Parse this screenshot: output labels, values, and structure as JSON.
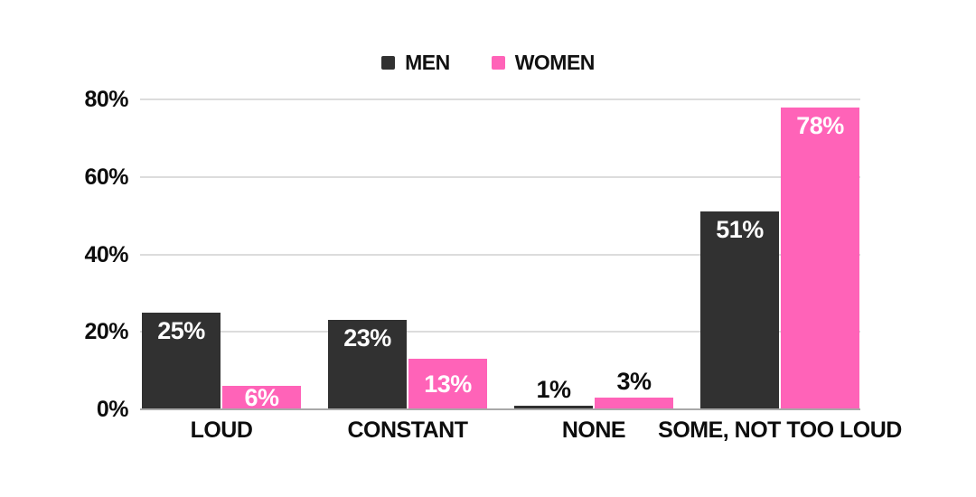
{
  "chart_data": {
    "type": "bar",
    "title": "",
    "categories": [
      "LOUD",
      "CONSTANT",
      "NONE",
      "SOME, NOT TOO LOUD"
    ],
    "series": [
      {
        "name": "MEN",
        "color": "#313131",
        "values": [
          25,
          23,
          1,
          51
        ]
      },
      {
        "name": "WOMEN",
        "color": "#ff63b8",
        "values": [
          6,
          13,
          3,
          78
        ]
      }
    ],
    "value_labels": [
      [
        "25%",
        "23%",
        "1%",
        "51%"
      ],
      [
        "6%",
        "13%",
        "3%",
        "78%"
      ]
    ],
    "xlabel": "",
    "ylabel": "",
    "ytick_labels": [
      "0%",
      "20%",
      "40%",
      "60%",
      "80%"
    ],
    "ytick_values": [
      0,
      20,
      40,
      60,
      80
    ],
    "ylim": [
      0,
      80
    ],
    "grid": true,
    "legend_position": "top"
  },
  "colors": {
    "background": "#ffffff",
    "men_bar": "#313131",
    "women_bar": "#ff63b8",
    "gridline": "#dcdcdc",
    "axis_line": "#a9a9a9",
    "label_inside": "#ffffff",
    "label_outside": "#0d0d0d"
  }
}
